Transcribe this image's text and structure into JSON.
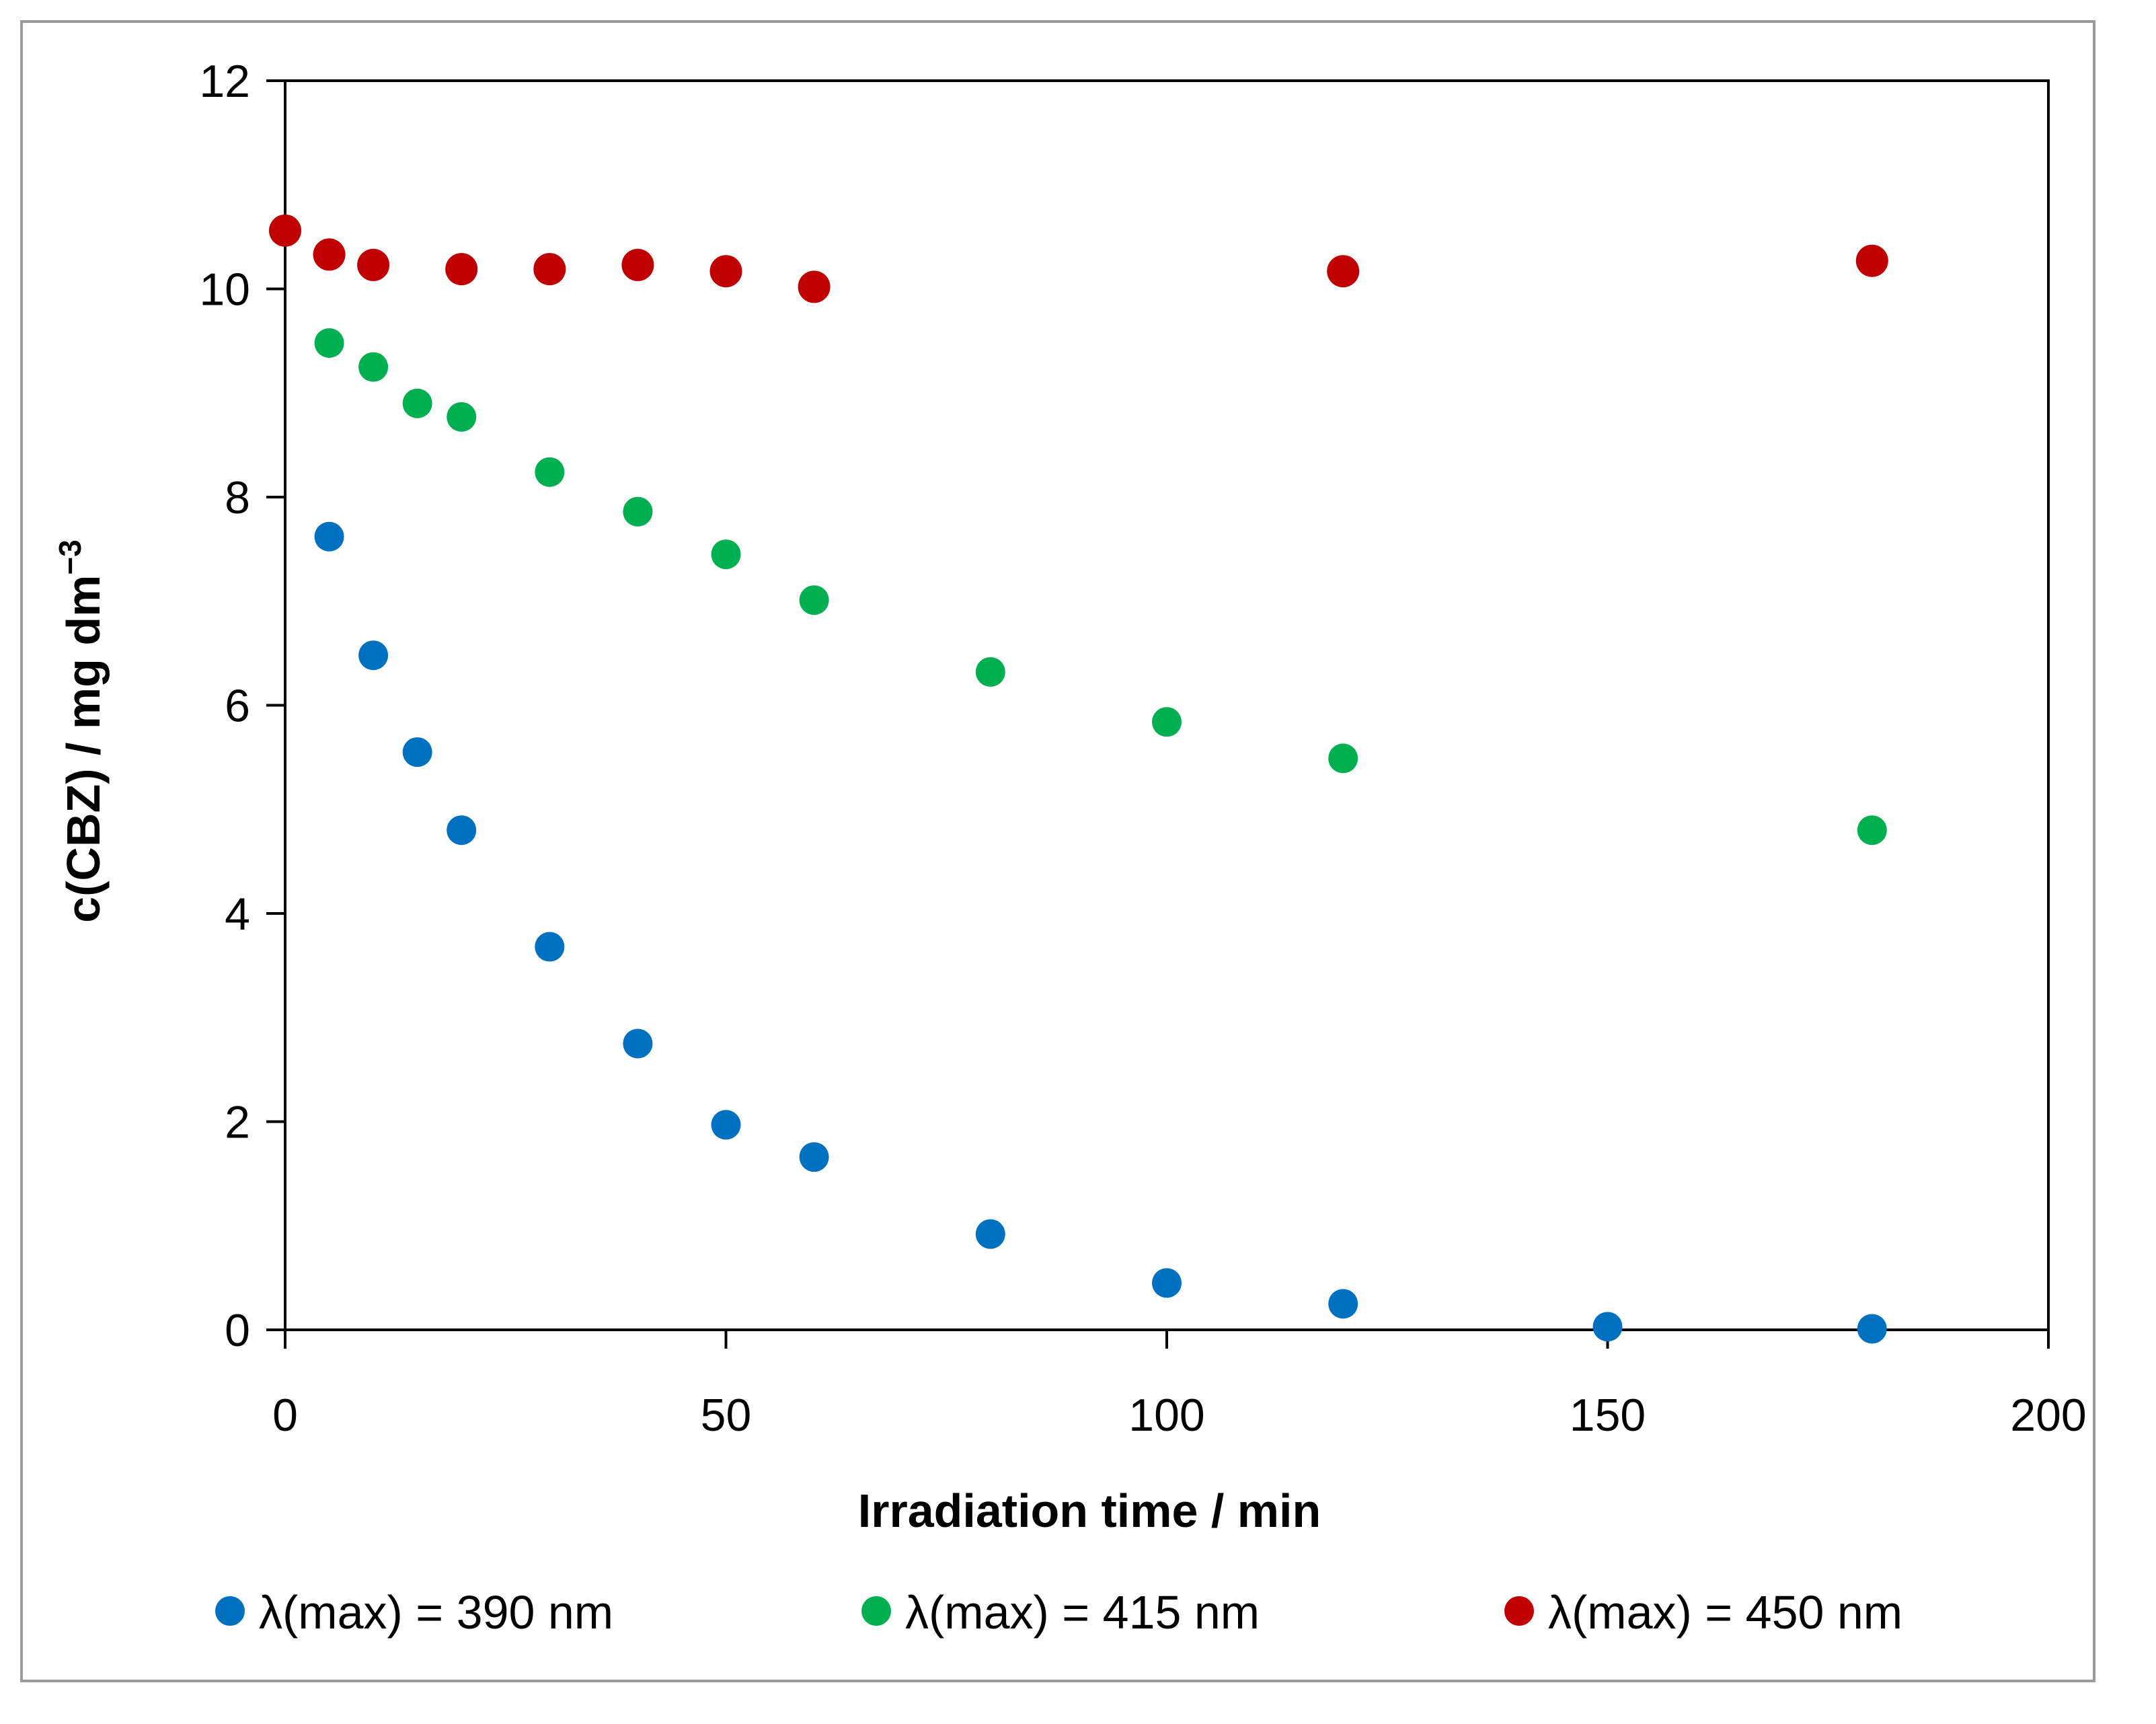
{
  "chart_data": {
    "type": "scatter",
    "title": "",
    "xlabel": "Irradiation time / min",
    "ylabel": "c(CBZ) / mg dm",
    "ylabel_superscript": "−3",
    "xlim": [
      0,
      200
    ],
    "ylim": [
      0,
      12
    ],
    "x_ticks": [
      "0",
      "50",
      "100",
      "150",
      "200"
    ],
    "y_ticks": [
      "0",
      "2",
      "4",
      "6",
      "8",
      "10",
      "12"
    ],
    "grid": false,
    "legend_position": "bottom",
    "series": [
      {
        "name": "λ(max) = 390 nm",
        "color": "#0070C0",
        "points": [
          {
            "x": 5,
            "y": 7.62
          },
          {
            "x": 10,
            "y": 6.48
          },
          {
            "x": 15,
            "y": 5.55
          },
          {
            "x": 20,
            "y": 4.8
          },
          {
            "x": 30,
            "y": 3.68
          },
          {
            "x": 40,
            "y": 2.75
          },
          {
            "x": 50,
            "y": 1.97
          },
          {
            "x": 60,
            "y": 1.66
          },
          {
            "x": 80,
            "y": 0.92
          },
          {
            "x": 100,
            "y": 0.45
          },
          {
            "x": 120,
            "y": 0.25
          },
          {
            "x": 150,
            "y": 0.03
          },
          {
            "x": 180,
            "y": 0.01
          }
        ]
      },
      {
        "name": "λ(max) = 415 nm",
        "color": "#00B050",
        "points": [
          {
            "x": 5,
            "y": 9.48
          },
          {
            "x": 10,
            "y": 9.25
          },
          {
            "x": 15,
            "y": 8.9
          },
          {
            "x": 20,
            "y": 8.77
          },
          {
            "x": 30,
            "y": 8.24
          },
          {
            "x": 40,
            "y": 7.86
          },
          {
            "x": 50,
            "y": 7.45
          },
          {
            "x": 60,
            "y": 7.01
          },
          {
            "x": 80,
            "y": 6.32
          },
          {
            "x": 100,
            "y": 5.84
          },
          {
            "x": 120,
            "y": 5.49
          },
          {
            "x": 180,
            "y": 4.8
          }
        ]
      },
      {
        "name": "λ(max) = 450 nm",
        "color": "#C00000",
        "points": [
          {
            "x": 0,
            "y": 10.56
          },
          {
            "x": 5,
            "y": 10.33
          },
          {
            "x": 10,
            "y": 10.23
          },
          {
            "x": 20,
            "y": 10.19
          },
          {
            "x": 30,
            "y": 10.19
          },
          {
            "x": 40,
            "y": 10.23
          },
          {
            "x": 50,
            "y": 10.17
          },
          {
            "x": 60,
            "y": 10.02
          },
          {
            "x": 120,
            "y": 10.17
          },
          {
            "x": 180,
            "y": 10.27
          }
        ]
      }
    ]
  }
}
